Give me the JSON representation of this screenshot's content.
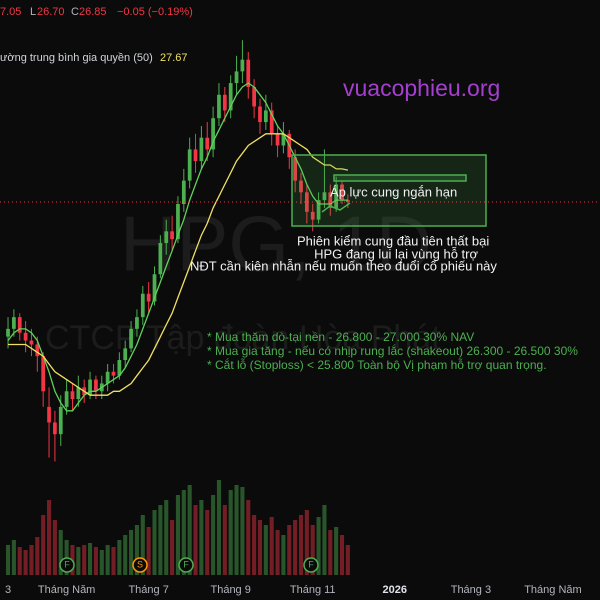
{
  "chart_data": {
    "type": "candlestick",
    "ohlc_header": [
      "7.05",
      "L",
      "26.70",
      "C",
      "26.85",
      "−0.05 (−0.19%)"
    ],
    "indicator_label": "ường trung bình gia quyền (50)",
    "indicator_value": "27.67",
    "site": "vuacophieu.org",
    "watermark": [
      "HPG, 1D",
      "CTCP Tập đoàn Hòa Phát"
    ],
    "annotations": [
      "Áp lực cung ngắn hạn",
      "Phiên kiểm cung đầu tiên thất bại",
      "HPG đang lui lại vùng hỗ trợ",
      "NĐT cần kiên nhẫn nếu muốn theo đuổi cổ phiếu này"
    ],
    "plan": [
      "* Mua thăm dò-tại nền - 26.800 - 27.000 30% NAV",
      "* Mua gia tăng - nếu có nhịp rung lắc (shakeout) 26.300 - 26.500 30%",
      "* Cắt lỗ (Stoploss) < 25.800 Toàn bộ Vị phạm hỗ trợ quan trọng."
    ],
    "events": [
      "F",
      "S",
      "F",
      "F"
    ],
    "up_color": "#4caf50",
    "down_color": "#f23645",
    "xlim": [
      -1.37,
      101.03
    ],
    "xticks": [
      {
        "value": 0,
        "label": "3"
      },
      {
        "value": 10,
        "label": "Tháng Năm"
      },
      {
        "value": 24,
        "label": "Tháng 7"
      },
      {
        "value": 38,
        "label": "Tháng 9"
      },
      {
        "value": 52,
        "label": "Tháng 11"
      },
      {
        "value": 66,
        "label": "2026"
      },
      {
        "value": 79,
        "label": "Tháng 3"
      },
      {
        "value": 93,
        "label": "Tháng Năm"
      }
    ],
    "ylim": [
      17.29,
      32.03
    ],
    "volume_lim": [
      0,
      120
    ],
    "ohlc": [
      [
        23.4,
        23.9,
        23.1,
        23.6
      ],
      [
        23.6,
        24.1,
        23.4,
        23.9
      ],
      [
        23.9,
        24.0,
        23.3,
        23.5
      ],
      [
        23.5,
        23.8,
        23.0,
        23.3
      ],
      [
        23.3,
        23.6,
        22.9,
        23.2
      ],
      [
        23.2,
        23.4,
        22.5,
        22.9
      ],
      [
        22.9,
        23.0,
        21.6,
        22.0
      ],
      [
        21.6,
        22.1,
        20.3,
        21.2
      ],
      [
        21.2,
        21.5,
        20.2,
        20.9
      ],
      [
        20.9,
        21.9,
        20.6,
        21.6
      ],
      [
        21.6,
        22.3,
        21.4,
        22.0
      ],
      [
        22.0,
        22.2,
        21.5,
        21.8
      ],
      [
        21.8,
        22.4,
        21.6,
        22.1
      ],
      [
        22.1,
        22.3,
        21.7,
        21.9
      ],
      [
        21.9,
        22.5,
        21.8,
        22.3
      ],
      [
        22.3,
        22.4,
        21.8,
        22.0
      ],
      [
        22.0,
        22.4,
        21.8,
        22.2
      ],
      [
        22.2,
        22.7,
        22.0,
        22.5
      ],
      [
        22.5,
        22.7,
        22.2,
        22.4
      ],
      [
        22.4,
        23.0,
        22.3,
        22.8
      ],
      [
        22.8,
        23.3,
        22.6,
        23.1
      ],
      [
        23.1,
        23.8,
        23.0,
        23.6
      ],
      [
        23.6,
        24.1,
        23.4,
        23.9
      ],
      [
        23.9,
        24.7,
        23.7,
        24.5
      ],
      [
        24.5,
        24.8,
        24.0,
        24.3
      ],
      [
        24.3,
        25.2,
        24.2,
        25.0
      ],
      [
        25.0,
        26.0,
        24.9,
        25.8
      ],
      [
        25.8,
        26.4,
        25.5,
        26.1
      ],
      [
        26.1,
        26.5,
        25.6,
        25.9
      ],
      [
        25.9,
        27.0,
        25.8,
        26.8
      ],
      [
        26.8,
        27.7,
        26.6,
        27.4
      ],
      [
        27.4,
        28.5,
        27.2,
        28.2
      ],
      [
        28.2,
        28.6,
        27.6,
        27.9
      ],
      [
        27.9,
        28.8,
        27.7,
        28.5
      ],
      [
        28.5,
        28.9,
        27.9,
        28.2
      ],
      [
        28.2,
        29.3,
        28.0,
        29.0
      ],
      [
        29.0,
        29.9,
        28.8,
        29.6
      ],
      [
        29.6,
        29.8,
        28.9,
        29.2
      ],
      [
        29.2,
        30.1,
        29.0,
        29.9
      ],
      [
        29.9,
        30.6,
        29.6,
        30.2
      ],
      [
        30.2,
        31.0,
        29.9,
        30.5
      ],
      [
        30.5,
        30.7,
        29.5,
        29.8
      ],
      [
        29.8,
        30.0,
        29.0,
        29.3
      ],
      [
        29.3,
        29.5,
        28.6,
        28.9
      ],
      [
        28.9,
        29.6,
        28.7,
        29.2
      ],
      [
        29.2,
        29.4,
        28.3,
        28.6
      ],
      [
        28.6,
        28.8,
        28.0,
        28.3
      ],
      [
        28.3,
        28.9,
        28.1,
        28.6
      ],
      [
        28.6,
        28.7,
        27.7,
        28.0
      ],
      [
        28.0,
        28.2,
        27.1,
        27.4
      ],
      [
        27.4,
        27.6,
        26.8,
        27.1
      ],
      [
        27.1,
        27.3,
        26.3,
        26.6
      ],
      [
        26.6,
        26.8,
        26.1,
        26.4
      ],
      [
        26.4,
        27.1,
        26.3,
        26.9
      ],
      [
        26.9,
        28.2,
        26.7,
        27.1
      ],
      [
        27.1,
        27.3,
        26.5,
        26.7
      ],
      [
        26.7,
        27.5,
        26.6,
        27.3
      ],
      [
        27.3,
        27.4,
        26.8,
        26.9
      ],
      [
        26.9,
        27.05,
        26.7,
        26.85
      ]
    ],
    "volume": [
      30,
      35,
      28,
      25,
      30,
      38,
      60,
      75,
      55,
      45,
      35,
      30,
      28,
      30,
      32,
      28,
      25,
      30,
      28,
      35,
      40,
      45,
      50,
      60,
      48,
      65,
      70,
      75,
      55,
      80,
      85,
      90,
      70,
      75,
      65,
      80,
      95,
      70,
      85,
      90,
      88,
      75,
      60,
      55,
      50,
      58,
      45,
      40,
      50,
      55,
      60,
      65,
      50,
      58,
      70,
      45,
      48,
      40,
      30
    ],
    "lines": [
      {
        "color": "#5fd35a",
        "values": [
          23.3,
          23.5,
          23.6,
          23.6,
          23.5,
          23.3,
          22.9,
          22.5,
          22.0,
          21.7,
          21.5,
          21.5,
          21.7,
          21.9,
          22.0,
          22.0,
          22.1,
          22.2,
          22.3,
          22.4,
          22.6,
          22.9,
          23.2,
          23.6,
          24.0,
          24.4,
          24.8,
          25.2,
          25.6,
          26.0,
          26.4,
          26.9,
          27.3,
          27.7,
          28.0,
          28.4,
          28.7,
          29.0,
          29.3,
          29.6,
          29.8,
          29.9,
          29.8,
          29.6,
          29.4,
          29.1,
          28.8,
          28.6,
          28.3,
          28.0,
          27.7,
          27.3,
          27.0,
          26.8,
          26.8,
          26.8,
          26.9,
          26.9,
          26.9
        ]
      },
      {
        "color": "#f0e060",
        "values": [
          23.2,
          23.2,
          23.2,
          23.2,
          23.1,
          23.0,
          22.9,
          22.7,
          22.5,
          22.4,
          22.3,
          22.2,
          22.1,
          22.0,
          21.9,
          21.9,
          21.9,
          21.9,
          22.0,
          22.0,
          22.1,
          22.2,
          22.4,
          22.6,
          22.8,
          23.1,
          23.4,
          23.7,
          24.0,
          24.4,
          24.8,
          25.2,
          25.6,
          26.0,
          26.3,
          26.7,
          27.0,
          27.3,
          27.6,
          27.9,
          28.1,
          28.3,
          28.4,
          28.5,
          28.6,
          28.6,
          28.6,
          28.6,
          28.5,
          28.4,
          28.3,
          28.2,
          28.0,
          27.9,
          27.8,
          27.8,
          27.7,
          27.7,
          27.67
        ]
      }
    ]
  }
}
